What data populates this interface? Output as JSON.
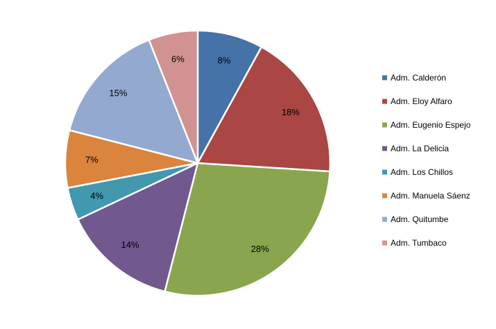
{
  "chart_data": {
    "type": "pie",
    "title": "",
    "legend_position": "right",
    "slices": [
      {
        "label": "Adm. Calderón",
        "value": 8,
        "display": "8%",
        "color": "#4572a7"
      },
      {
        "label": "Adm. Eloy Alfaro",
        "value": 18,
        "display": "18%",
        "color": "#aa4643"
      },
      {
        "label": "Adm. Eugenio Espejo",
        "value": 28,
        "display": "28%",
        "color": "#89a54e"
      },
      {
        "label": "Adm. La Delicia",
        "value": 14,
        "display": "14%",
        "color": "#71588f"
      },
      {
        "label": "Adm. Los Chillos",
        "value": 4,
        "display": "4%",
        "color": "#4198af"
      },
      {
        "label": "Adm. Manuela Sáenz",
        "value": 7,
        "display": "7%",
        "color": "#db843d"
      },
      {
        "label": "Adm. Quitumbe",
        "value": 15,
        "display": "15%",
        "color": "#93a9cf"
      },
      {
        "label": "Adm. Tumbaco",
        "value": 6,
        "display": "6%",
        "color": "#d19392"
      }
    ]
  }
}
